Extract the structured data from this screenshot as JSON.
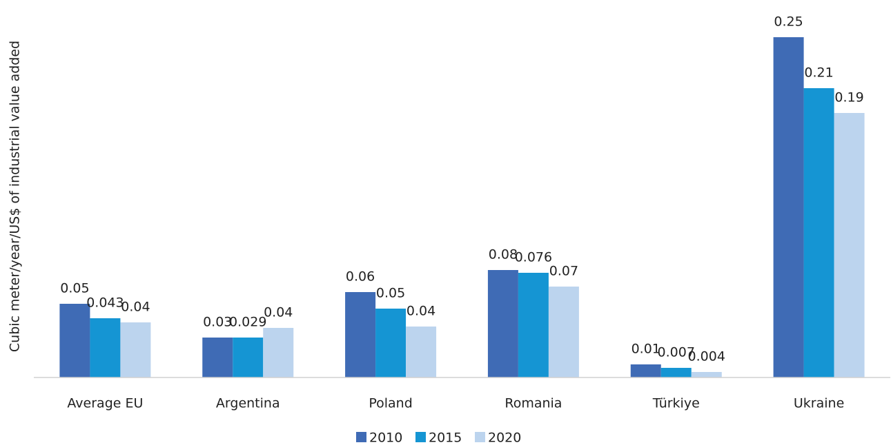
{
  "chart_data": {
    "type": "bar",
    "y_label": "Cubic meter/year/US$ of industrial value added",
    "categories": [
      "Average EU",
      "Argentina",
      "Poland",
      "Romania",
      "Türkiye",
      "Ukraine"
    ],
    "series": [
      {
        "name": "2010",
        "color": "#3f6bb5",
        "values": [
          0.0535,
          0.029,
          0.062,
          0.078,
          0.0095,
          0.247
        ],
        "value_labels": [
          "0.05",
          "0.03",
          "0.06",
          "0.08",
          "0.01",
          "0.25"
        ]
      },
      {
        "name": "2015",
        "color": "#1595d3",
        "values": [
          0.043,
          0.029,
          0.05,
          0.076,
          0.007,
          0.21
        ],
        "value_labels": [
          "0.043",
          "0.029",
          "0.05",
          "0.076",
          "0.007",
          "0.21"
        ]
      },
      {
        "name": "2020",
        "color": "#bcd4ee",
        "values": [
          0.04,
          0.036,
          0.037,
          0.066,
          0.004,
          0.192
        ],
        "value_labels": [
          "0.04",
          "0.04",
          "0.04",
          "0.07",
          "0.004",
          "0.19"
        ]
      }
    ],
    "ylim": [
      0,
      0.25
    ],
    "legend": "bottom"
  }
}
